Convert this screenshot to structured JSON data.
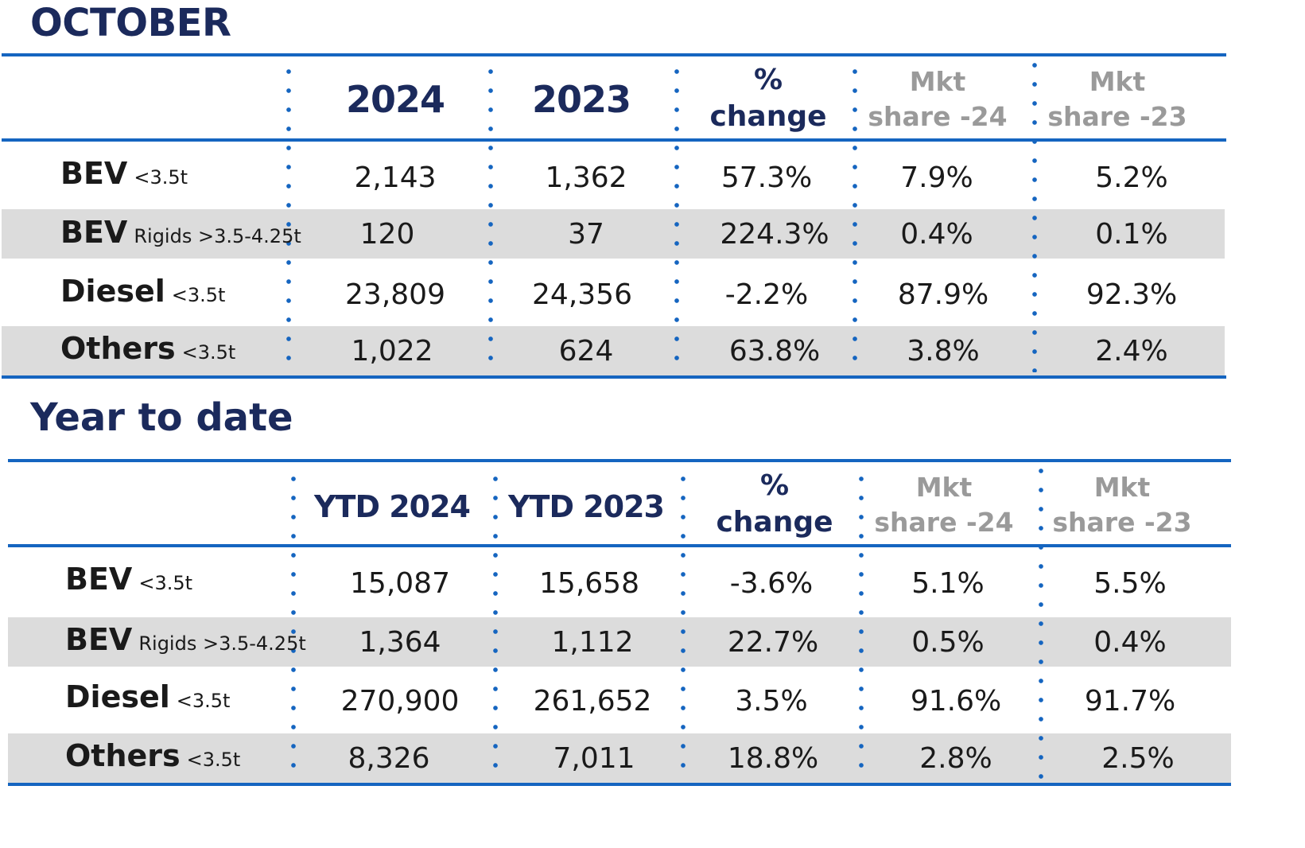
{
  "october": {
    "title": "OCTOBER",
    "headers": {
      "col1": "2024",
      "col2": "2023",
      "change_line1": "%",
      "change_line2": "change",
      "mkt24_line1": "Mkt",
      "mkt24_line2": "share -24",
      "mkt23_line1": "Mkt",
      "mkt23_line2": "share -23"
    },
    "rows": [
      {
        "label": "BEV",
        "sub": "<3.5t",
        "v2024": "2,143",
        "v2023": "1,362",
        "change": "57.3%",
        "mkt24": "7.9%",
        "mkt23": "5.2%"
      },
      {
        "label": "BEV",
        "sub": "Rigids >3.5-4.25t",
        "v2024": "120",
        "v2023": "37",
        "change": "224.3%",
        "mkt24": "0.4%",
        "mkt23": "0.1%"
      },
      {
        "label": "Diesel",
        "sub": "<3.5t",
        "v2024": "23,809",
        "v2023": "24,356",
        "change": "-2.2%",
        "mkt24": "87.9%",
        "mkt23": "92.3%"
      },
      {
        "label": "Others",
        "sub": "<3.5t",
        "v2024": "1,022",
        "v2023": "624",
        "change": "63.8%",
        "mkt24": "3.8%",
        "mkt23": "2.4%"
      }
    ]
  },
  "ytd": {
    "title": "Year to date",
    "headers": {
      "col1": "YTD 2024",
      "col2": "YTD 2023",
      "change_line1": "%",
      "change_line2": "change",
      "mkt24_line1": "Mkt",
      "mkt24_line2": "share -24",
      "mkt23_line1": "Mkt",
      "mkt23_line2": "share -23"
    },
    "rows": [
      {
        "label": "BEV",
        "sub": "<3.5t",
        "v2024": "15,087",
        "v2023": "15,658",
        "change": "-3.6%",
        "mkt24": "5.1%",
        "mkt23": "5.5%"
      },
      {
        "label": "BEV",
        "sub": "Rigids >3.5-4.25t",
        "v2024": "1,364",
        "v2023": "1,112",
        "change": "22.7%",
        "mkt24": "0.5%",
        "mkt23": "0.4%"
      },
      {
        "label": "Diesel",
        "sub": "<3.5t",
        "v2024": "270,900",
        "v2023": "261,652",
        "change": "3.5%",
        "mkt24": "91.6%",
        "mkt23": "91.7%"
      },
      {
        "label": "Others",
        "sub": "<3.5t",
        "v2024": "8,326",
        "v2023": "7,011",
        "change": "18.8%",
        "mkt24": "2.8%",
        "mkt23": "2.5%"
      }
    ]
  }
}
